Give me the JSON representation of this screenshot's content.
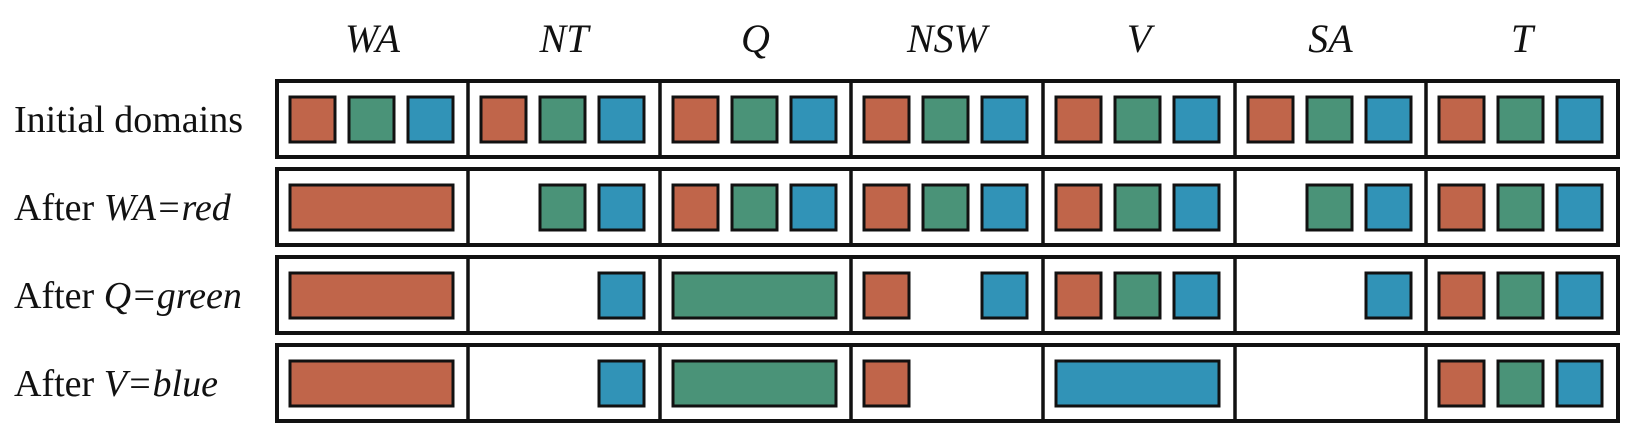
{
  "variables": [
    "WA",
    "NT",
    "Q",
    "NSW",
    "V",
    "SA",
    "T"
  ],
  "colors": {
    "red": "#c0654a",
    "green": "#4a9378",
    "blue": "#3193b7"
  },
  "rows": [
    {
      "label": {
        "prefix": "Initial domains",
        "variable": "",
        "assignment": ""
      },
      "cells": [
        {
          "domain": [
            "red",
            "green",
            "blue"
          ],
          "assigned": false
        },
        {
          "domain": [
            "red",
            "green",
            "blue"
          ],
          "assigned": false
        },
        {
          "domain": [
            "red",
            "green",
            "blue"
          ],
          "assigned": false
        },
        {
          "domain": [
            "red",
            "green",
            "blue"
          ],
          "assigned": false
        },
        {
          "domain": [
            "red",
            "green",
            "blue"
          ],
          "assigned": false
        },
        {
          "domain": [
            "red",
            "green",
            "blue"
          ],
          "assigned": false
        },
        {
          "domain": [
            "red",
            "green",
            "blue"
          ],
          "assigned": false
        }
      ]
    },
    {
      "label": {
        "prefix": "After ",
        "variable": "WA",
        "assignment": "=red"
      },
      "cells": [
        {
          "domain": [
            "red"
          ],
          "assigned": true
        },
        {
          "domain": [
            "green",
            "blue"
          ],
          "assigned": false
        },
        {
          "domain": [
            "red",
            "green",
            "blue"
          ],
          "assigned": false
        },
        {
          "domain": [
            "red",
            "green",
            "blue"
          ],
          "assigned": false
        },
        {
          "domain": [
            "red",
            "green",
            "blue"
          ],
          "assigned": false
        },
        {
          "domain": [
            "green",
            "blue"
          ],
          "assigned": false
        },
        {
          "domain": [
            "red",
            "green",
            "blue"
          ],
          "assigned": false
        }
      ]
    },
    {
      "label": {
        "prefix": "After ",
        "variable": "Q",
        "assignment": "=green"
      },
      "cells": [
        {
          "domain": [
            "red"
          ],
          "assigned": true
        },
        {
          "domain": [
            "blue"
          ],
          "assigned": false
        },
        {
          "domain": [
            "green"
          ],
          "assigned": true
        },
        {
          "domain": [
            "red",
            "blue"
          ],
          "assigned": false
        },
        {
          "domain": [
            "red",
            "green",
            "blue"
          ],
          "assigned": false
        },
        {
          "domain": [
            "blue"
          ],
          "assigned": false
        },
        {
          "domain": [
            "red",
            "green",
            "blue"
          ],
          "assigned": false
        }
      ]
    },
    {
      "label": {
        "prefix": "After ",
        "variable": "V",
        "assignment": "=blue"
      },
      "cells": [
        {
          "domain": [
            "red"
          ],
          "assigned": true
        },
        {
          "domain": [
            "blue"
          ],
          "assigned": false
        },
        {
          "domain": [
            "green"
          ],
          "assigned": true
        },
        {
          "domain": [
            "red"
          ],
          "assigned": false
        },
        {
          "domain": [
            "blue"
          ],
          "assigned": true
        },
        {
          "domain": [],
          "assigned": false
        },
        {
          "domain": [
            "red",
            "green",
            "blue"
          ],
          "assigned": false
        }
      ]
    }
  ]
}
